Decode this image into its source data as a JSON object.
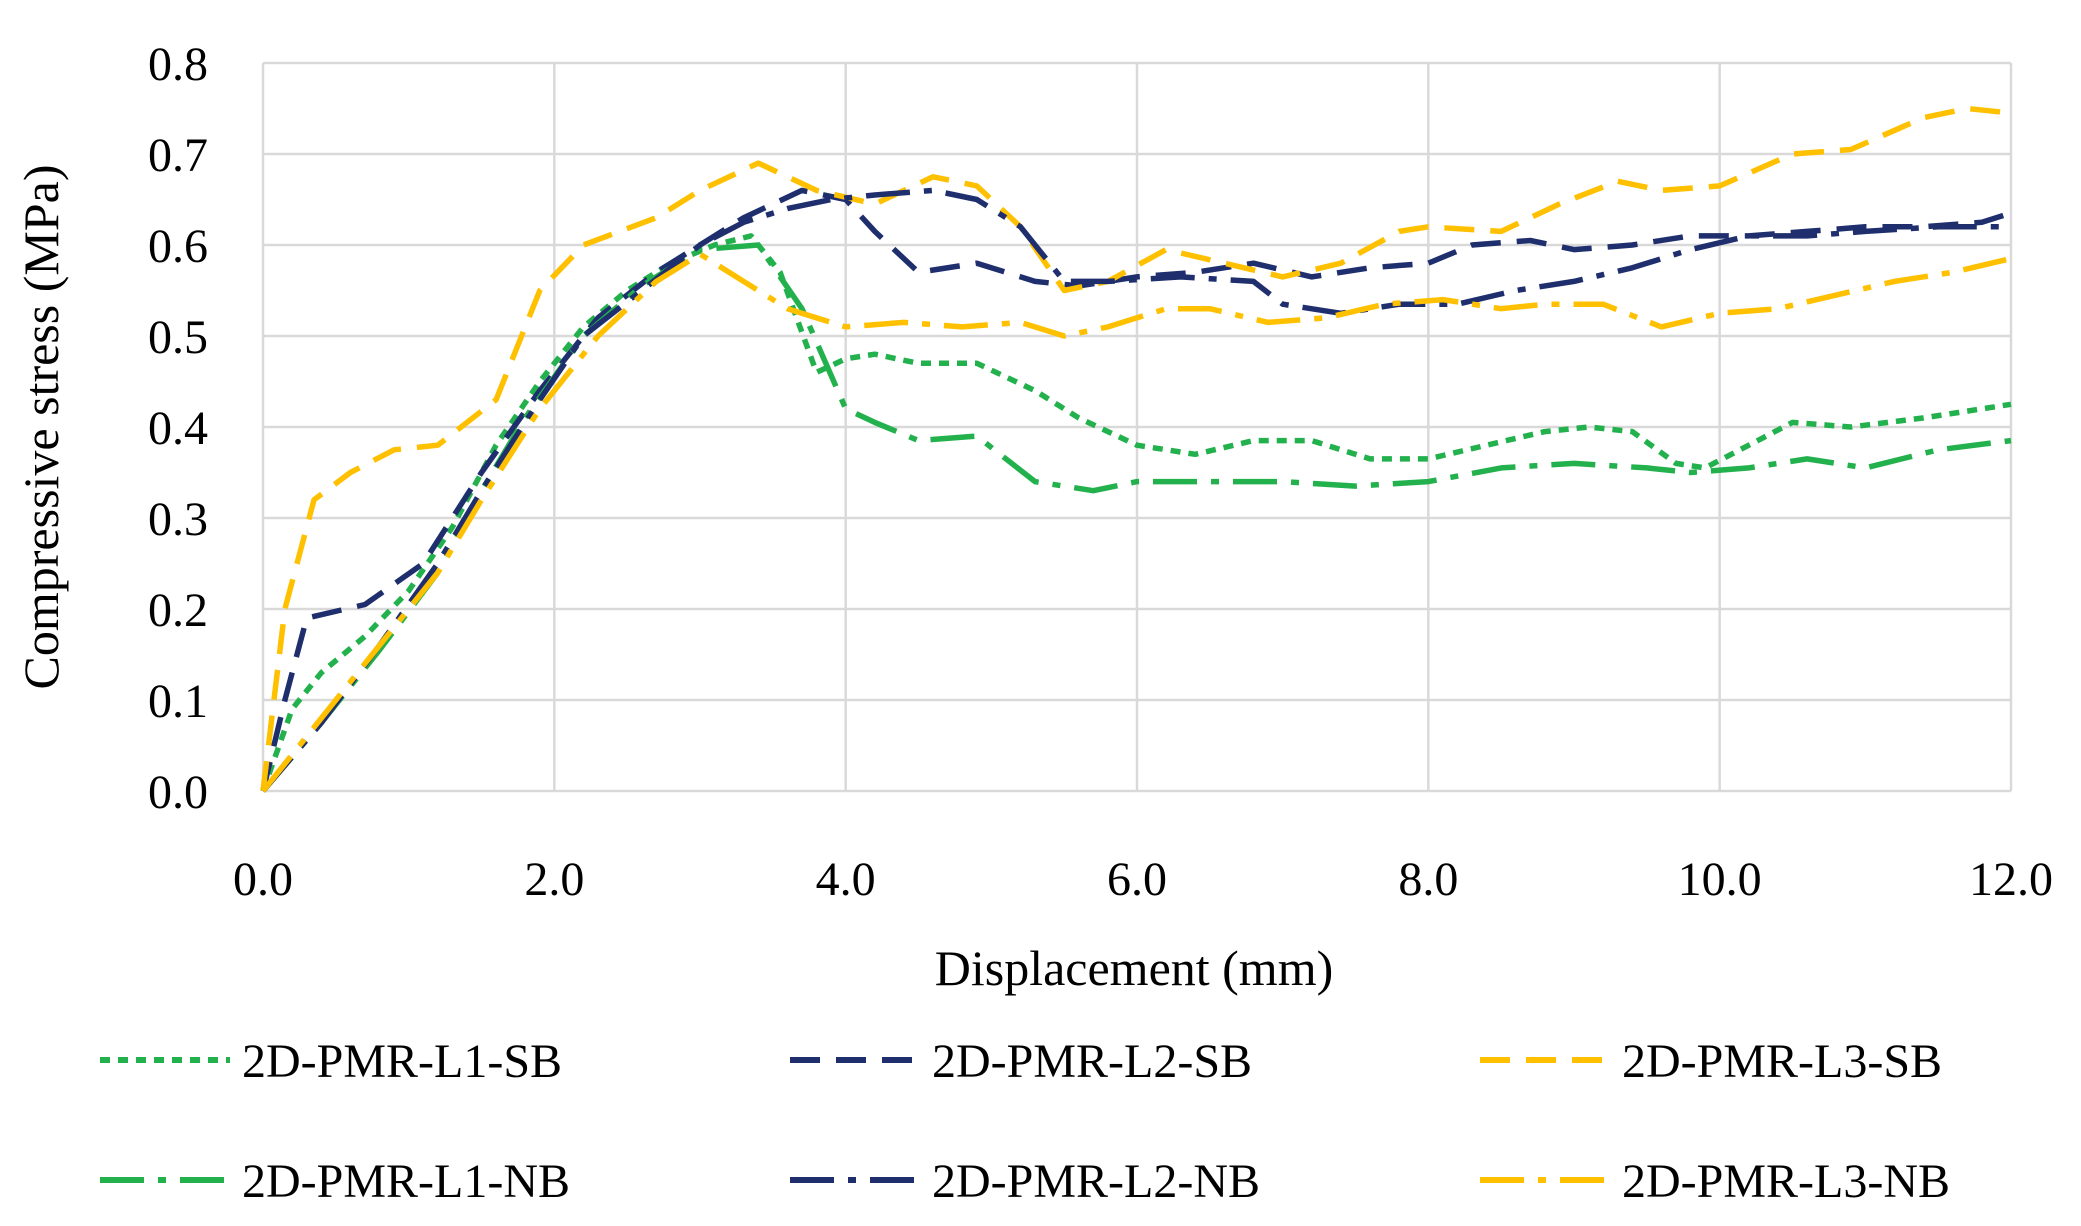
{
  "chart_data": {
    "type": "line",
    "title": "",
    "xlabel": "Displacement (mm)",
    "ylabel": "Compressive stress (MPa)",
    "xlim": [
      0,
      12
    ],
    "ylim": [
      0,
      0.8
    ],
    "grid": true,
    "legend_position": "bottom",
    "x_ticks": [
      {
        "value": 0,
        "label": "0.0"
      },
      {
        "value": 2,
        "label": "2.0"
      },
      {
        "value": 4,
        "label": "4.0"
      },
      {
        "value": 6,
        "label": "6.0"
      },
      {
        "value": 8,
        "label": "8.0"
      },
      {
        "value": 10,
        "label": "10.0"
      },
      {
        "value": 12,
        "label": "12.0"
      }
    ],
    "y_ticks": [
      {
        "value": 0,
        "label": "0.0"
      },
      {
        "value": 0.1,
        "label": "0.1"
      },
      {
        "value": 0.2,
        "label": "0.2"
      },
      {
        "value": 0.3,
        "label": "0.3"
      },
      {
        "value": 0.4,
        "label": "0.4"
      },
      {
        "value": 0.5,
        "label": "0.5"
      },
      {
        "value": 0.6,
        "label": "0.6"
      },
      {
        "value": 0.7,
        "label": "0.7"
      },
      {
        "value": 0.8,
        "label": "0.8"
      }
    ],
    "series": [
      {
        "name": "2D-PMR-L1-SB",
        "color": "#22b14c",
        "style": "dot",
        "points": [
          [
            0,
            0
          ],
          [
            0.2,
            0.09
          ],
          [
            0.4,
            0.13
          ],
          [
            0.7,
            0.17
          ],
          [
            1.0,
            0.22
          ],
          [
            1.3,
            0.29
          ],
          [
            1.6,
            0.38
          ],
          [
            1.9,
            0.45
          ],
          [
            2.2,
            0.51
          ],
          [
            2.5,
            0.55
          ],
          [
            2.8,
            0.58
          ],
          [
            3.1,
            0.6
          ],
          [
            3.35,
            0.61
          ],
          [
            3.55,
            0.57
          ],
          [
            3.8,
            0.46
          ],
          [
            4.0,
            0.475
          ],
          [
            4.2,
            0.48
          ],
          [
            4.5,
            0.47
          ],
          [
            4.9,
            0.47
          ],
          [
            5.3,
            0.44
          ],
          [
            5.6,
            0.41
          ],
          [
            6.0,
            0.38
          ],
          [
            6.4,
            0.37
          ],
          [
            6.8,
            0.385
          ],
          [
            7.2,
            0.385
          ],
          [
            7.6,
            0.365
          ],
          [
            8.0,
            0.365
          ],
          [
            8.4,
            0.38
          ],
          [
            8.8,
            0.395
          ],
          [
            9.1,
            0.4
          ],
          [
            9.4,
            0.395
          ],
          [
            9.7,
            0.36
          ],
          [
            9.9,
            0.355
          ],
          [
            10.2,
            0.38
          ],
          [
            10.5,
            0.405
          ],
          [
            10.9,
            0.4
          ],
          [
            11.4,
            0.41
          ],
          [
            12.0,
            0.425
          ]
        ]
      },
      {
        "name": "2D-PMR-L2-SB",
        "color": "#1f2f6e",
        "style": "dash",
        "points": [
          [
            0,
            0
          ],
          [
            0.15,
            0.1
          ],
          [
            0.3,
            0.19
          ],
          [
            0.7,
            0.205
          ],
          [
            1.1,
            0.25
          ],
          [
            1.5,
            0.35
          ],
          [
            1.9,
            0.44
          ],
          [
            2.3,
            0.52
          ],
          [
            2.7,
            0.57
          ],
          [
            3.0,
            0.6
          ],
          [
            3.3,
            0.63
          ],
          [
            3.7,
            0.66
          ],
          [
            4.0,
            0.65
          ],
          [
            4.2,
            0.615
          ],
          [
            4.5,
            0.57
          ],
          [
            4.9,
            0.58
          ],
          [
            5.3,
            0.56
          ],
          [
            5.6,
            0.555
          ],
          [
            6.0,
            0.565
          ],
          [
            6.4,
            0.57
          ],
          [
            6.8,
            0.58
          ],
          [
            7.2,
            0.565
          ],
          [
            7.6,
            0.575
          ],
          [
            8.0,
            0.58
          ],
          [
            8.3,
            0.6
          ],
          [
            8.7,
            0.605
          ],
          [
            9.0,
            0.595
          ],
          [
            9.4,
            0.6
          ],
          [
            9.8,
            0.61
          ],
          [
            10.2,
            0.61
          ],
          [
            10.6,
            0.615
          ],
          [
            11.0,
            0.62
          ],
          [
            11.4,
            0.62
          ],
          [
            11.8,
            0.625
          ],
          [
            12.0,
            0.635
          ]
        ]
      },
      {
        "name": "2D-PMR-L3-SB",
        "color": "#ffc000",
        "style": "dash",
        "points": [
          [
            0,
            0
          ],
          [
            0.15,
            0.2
          ],
          [
            0.35,
            0.32
          ],
          [
            0.6,
            0.35
          ],
          [
            0.9,
            0.375
          ],
          [
            1.2,
            0.38
          ],
          [
            1.6,
            0.43
          ],
          [
            1.9,
            0.55
          ],
          [
            2.2,
            0.6
          ],
          [
            2.7,
            0.63
          ],
          [
            3.0,
            0.66
          ],
          [
            3.4,
            0.69
          ],
          [
            3.8,
            0.66
          ],
          [
            4.2,
            0.645
          ],
          [
            4.6,
            0.675
          ],
          [
            4.9,
            0.665
          ],
          [
            5.2,
            0.62
          ],
          [
            5.5,
            0.55
          ],
          [
            5.8,
            0.56
          ],
          [
            6.2,
            0.595
          ],
          [
            6.6,
            0.58
          ],
          [
            7.0,
            0.565
          ],
          [
            7.4,
            0.58
          ],
          [
            7.8,
            0.615
          ],
          [
            8.0,
            0.62
          ],
          [
            8.5,
            0.615
          ],
          [
            8.9,
            0.645
          ],
          [
            9.3,
            0.67
          ],
          [
            9.6,
            0.66
          ],
          [
            10.0,
            0.665
          ],
          [
            10.5,
            0.7
          ],
          [
            10.9,
            0.705
          ],
          [
            11.4,
            0.74
          ],
          [
            11.7,
            0.75
          ],
          [
            12.0,
            0.745
          ]
        ]
      },
      {
        "name": "2D-PMR-L1-NB",
        "color": "#22b14c",
        "style": "dashdot",
        "points": [
          [
            0,
            0
          ],
          [
            0.4,
            0.075
          ],
          [
            0.8,
            0.155
          ],
          [
            1.2,
            0.24
          ],
          [
            1.5,
            0.33
          ],
          [
            1.8,
            0.41
          ],
          [
            2.2,
            0.5
          ],
          [
            2.6,
            0.555
          ],
          [
            3.0,
            0.595
          ],
          [
            3.4,
            0.6
          ],
          [
            3.7,
            0.53
          ],
          [
            4.0,
            0.42
          ],
          [
            4.2,
            0.405
          ],
          [
            4.5,
            0.385
          ],
          [
            4.9,
            0.39
          ],
          [
            5.3,
            0.34
          ],
          [
            5.7,
            0.33
          ],
          [
            6.0,
            0.34
          ],
          [
            6.5,
            0.34
          ],
          [
            7.0,
            0.34
          ],
          [
            7.5,
            0.335
          ],
          [
            8.0,
            0.34
          ],
          [
            8.5,
            0.355
          ],
          [
            9.0,
            0.36
          ],
          [
            9.5,
            0.355
          ],
          [
            9.8,
            0.35
          ],
          [
            10.2,
            0.355
          ],
          [
            10.6,
            0.365
          ],
          [
            11.0,
            0.355
          ],
          [
            11.5,
            0.375
          ],
          [
            12.0,
            0.385
          ]
        ]
      },
      {
        "name": "2D-PMR-L2-NB",
        "color": "#1f2f6e",
        "style": "dashdot",
        "points": [
          [
            0,
            0
          ],
          [
            0.4,
            0.075
          ],
          [
            0.8,
            0.16
          ],
          [
            1.2,
            0.25
          ],
          [
            1.5,
            0.33
          ],
          [
            1.9,
            0.43
          ],
          [
            2.2,
            0.5
          ],
          [
            2.6,
            0.55
          ],
          [
            3.0,
            0.6
          ],
          [
            3.3,
            0.625
          ],
          [
            3.6,
            0.64
          ],
          [
            3.9,
            0.65
          ],
          [
            4.2,
            0.655
          ],
          [
            4.6,
            0.66
          ],
          [
            4.9,
            0.65
          ],
          [
            5.2,
            0.62
          ],
          [
            5.5,
            0.56
          ],
          [
            5.8,
            0.56
          ],
          [
            6.3,
            0.565
          ],
          [
            6.8,
            0.56
          ],
          [
            7.0,
            0.535
          ],
          [
            7.4,
            0.525
          ],
          [
            7.8,
            0.535
          ],
          [
            8.2,
            0.535
          ],
          [
            8.6,
            0.55
          ],
          [
            9.0,
            0.56
          ],
          [
            9.4,
            0.575
          ],
          [
            9.8,
            0.595
          ],
          [
            10.2,
            0.61
          ],
          [
            10.6,
            0.61
          ],
          [
            11.0,
            0.615
          ],
          [
            11.5,
            0.62
          ],
          [
            12.0,
            0.62
          ]
        ]
      },
      {
        "name": "2D-PMR-L3-NB",
        "color": "#ffc000",
        "style": "dashdot",
        "points": [
          [
            0,
            0
          ],
          [
            0.4,
            0.08
          ],
          [
            0.8,
            0.16
          ],
          [
            1.2,
            0.24
          ],
          [
            1.5,
            0.32
          ],
          [
            1.9,
            0.42
          ],
          [
            2.3,
            0.5
          ],
          [
            2.7,
            0.56
          ],
          [
            3.0,
            0.59
          ],
          [
            3.3,
            0.56
          ],
          [
            3.6,
            0.53
          ],
          [
            4.0,
            0.51
          ],
          [
            4.4,
            0.515
          ],
          [
            4.8,
            0.51
          ],
          [
            5.2,
            0.515
          ],
          [
            5.5,
            0.5
          ],
          [
            5.8,
            0.51
          ],
          [
            6.2,
            0.53
          ],
          [
            6.5,
            0.53
          ],
          [
            6.9,
            0.515
          ],
          [
            7.3,
            0.52
          ],
          [
            7.7,
            0.535
          ],
          [
            8.1,
            0.54
          ],
          [
            8.5,
            0.53
          ],
          [
            8.8,
            0.535
          ],
          [
            9.2,
            0.535
          ],
          [
            9.6,
            0.51
          ],
          [
            10.0,
            0.525
          ],
          [
            10.4,
            0.53
          ],
          [
            10.8,
            0.545
          ],
          [
            11.2,
            0.56
          ],
          [
            11.6,
            0.57
          ],
          [
            12.0,
            0.585
          ]
        ]
      }
    ]
  }
}
